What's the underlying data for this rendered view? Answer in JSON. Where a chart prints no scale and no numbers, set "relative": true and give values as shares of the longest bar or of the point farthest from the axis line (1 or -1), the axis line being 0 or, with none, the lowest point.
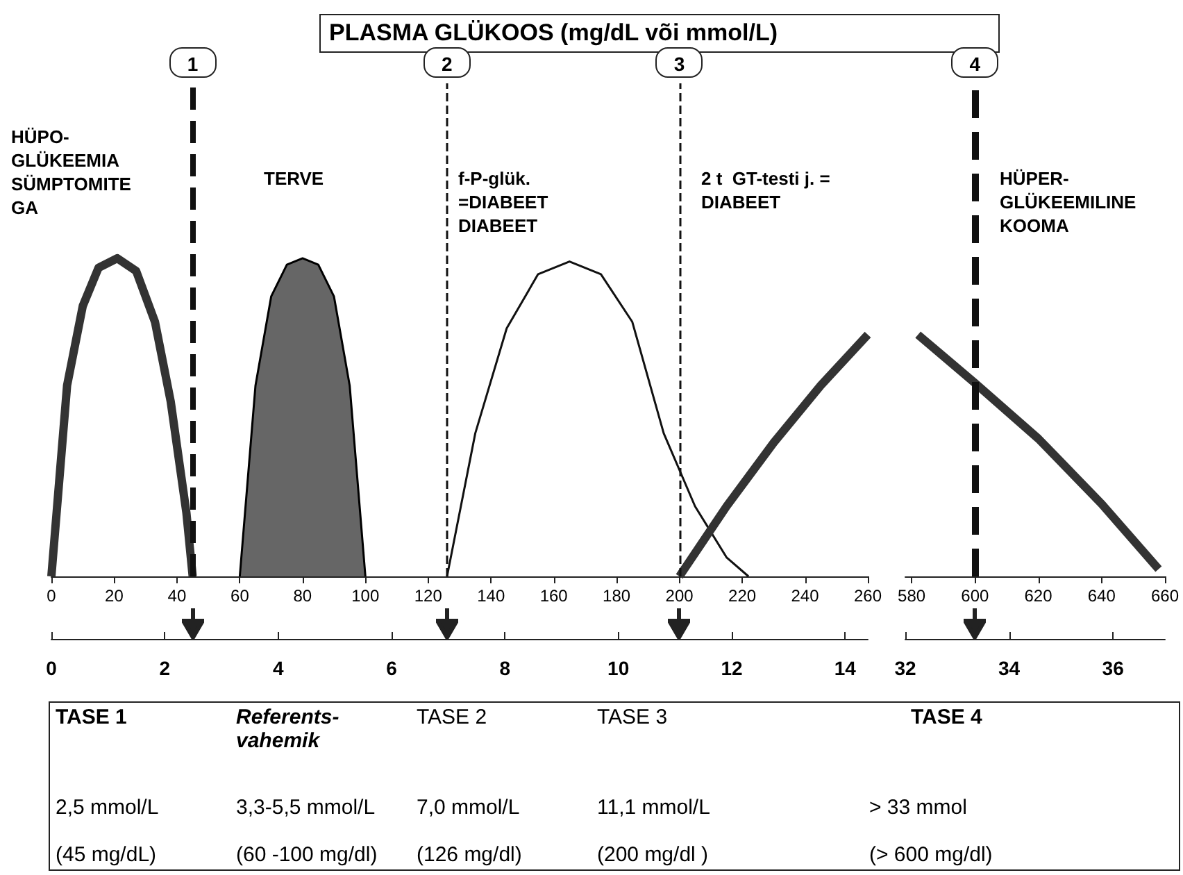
{
  "chart_data": [
    {
      "type": "line",
      "title": "PLASMA GLÜKOOS (mg/dL või mmol/L)",
      "relative": true,
      "marker": "none",
      "xlim": [
        0,
        260
      ],
      "xticks": [
        0,
        20,
        40,
        60,
        80,
        100,
        120,
        140,
        160,
        180,
        200,
        220,
        240,
        260
      ],
      "x2lim": [
        0,
        14.4
      ],
      "x2ticks": [
        0,
        2,
        4,
        6,
        8,
        10,
        12,
        14
      ],
      "series": [
        {
          "type": "line",
          "color": "#333333",
          "x": [
            0,
            5,
            10,
            15,
            21,
            27,
            33,
            38,
            43,
            45
          ],
          "values": [
            0,
            0.6,
            0.85,
            0.97,
            1,
            0.96,
            0.8,
            0.55,
            0.2,
            0
          ]
        },
        {
          "type": "area",
          "color": "#666666",
          "x": [
            60,
            65,
            70,
            75,
            80,
            85,
            90,
            95,
            100
          ],
          "values": [
            0,
            0.6,
            0.88,
            0.98,
            1,
            0.98,
            0.88,
            0.6,
            0
          ]
        },
        {
          "type": "line",
          "color": "#111111",
          "x": [
            126,
            135,
            145,
            155,
            165,
            175,
            185,
            195,
            205,
            215,
            222
          ],
          "values": [
            0,
            0.45,
            0.78,
            0.95,
            0.99,
            0.95,
            0.8,
            0.45,
            0.22,
            0.06,
            0
          ]
        },
        {
          "type": "line",
          "color": "#333333",
          "x": [
            200,
            215,
            230,
            245,
            260
          ],
          "values": [
            0,
            0.22,
            0.42,
            0.6,
            0.76
          ]
        }
      ],
      "ref_lines": [
        {
          "axis": "x",
          "value": 45,
          "line_style": "dashed"
        },
        {
          "axis": "x",
          "value": 126,
          "line_style": "dashed"
        },
        {
          "axis": "x",
          "value": 200,
          "line_style": "dashed"
        }
      ],
      "annotations": [
        "HÜPO-\nGLÜKEEMIA\nSÜMPTOMITE\nGA",
        "TERVE",
        "f-P-glük.\n=DIABEET\nDIABEET",
        "2 t  GT-testi j. =\nDIABEET",
        "1",
        "2",
        "3"
      ]
    },
    {
      "type": "line",
      "relative": true,
      "marker": "none",
      "xlim": [
        578,
        660
      ],
      "xticks": [
        580,
        600,
        620,
        640,
        660
      ],
      "x2lim": [
        32,
        37
      ],
      "x2ticks": [
        32,
        34,
        36
      ],
      "series": [
        {
          "type": "line",
          "color": "#333333",
          "x": [
            582,
            600,
            620,
            640,
            658
          ],
          "values": [
            1,
            0.8,
            0.57,
            0.3,
            0.03
          ]
        }
      ],
      "ref_lines": [
        {
          "axis": "x",
          "value": 600,
          "line_style": "dashed"
        }
      ],
      "annotations": [
        "HÜPER-\nGLÜKEEMILINE\nKOOMA",
        "4"
      ]
    },
    {
      "type": "other",
      "annotations": [
        "TASE 1",
        "Referents-\nvahemik",
        "TASE 2",
        "TASE 3",
        "TASE 4",
        "2,5 mmol/L",
        "3,3-5,5 mmol/L",
        "7,0 mmol/L",
        "11,1 mmol/L",
        "> 33 mmol",
        "(45 mg/dL)",
        "(60 -100 mg/dl)",
        "(126 mg/dl)",
        "(200 mg/dl )",
        "(> 600 mg/dl)"
      ]
    }
  ]
}
